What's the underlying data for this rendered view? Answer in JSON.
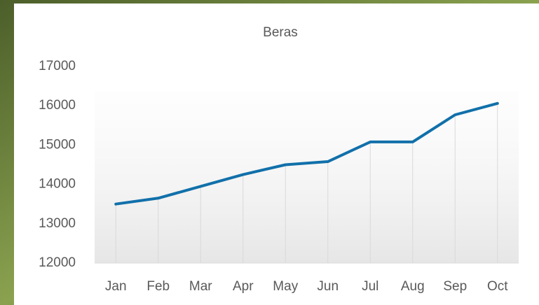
{
  "chart_data": {
    "type": "line",
    "title": "Beras",
    "categories": [
      "Jan",
      "Feb",
      "Mar",
      "Apr",
      "May",
      "Jun",
      "Jul",
      "Aug",
      "Sep",
      "Oct"
    ],
    "values": [
      13500,
      13650,
      13950,
      14250,
      14500,
      14580,
      15080,
      15080,
      15770,
      16060
    ],
    "color": "#1170aa",
    "ylim": [
      12000,
      17000
    ],
    "yticks": [
      12000,
      13000,
      14000,
      15000,
      16000,
      17000
    ],
    "drop_lines": true
  }
}
